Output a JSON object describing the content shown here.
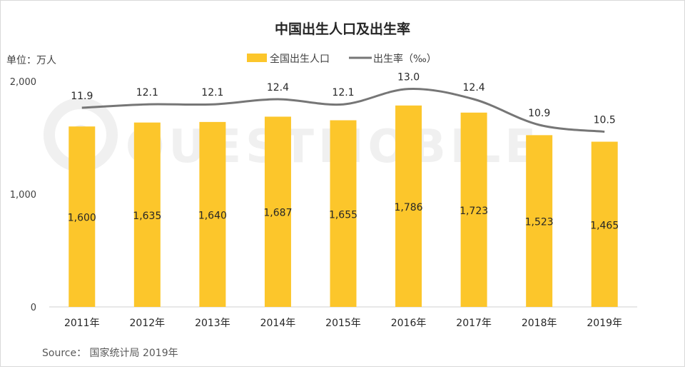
{
  "chart_data": {
    "type": "bar",
    "title": "中国出生人口及出生率",
    "unit_label": "单位：万人",
    "categories": [
      "2011年",
      "2012年",
      "2013年",
      "2014年",
      "2015年",
      "2016年",
      "2017年",
      "2018年",
      "2019年"
    ],
    "series": [
      {
        "name": "全国出生人口",
        "type": "bar",
        "color": "#FCC62B",
        "values": [
          1600,
          1635,
          1640,
          1687,
          1655,
          1786,
          1723,
          1523,
          1465
        ]
      },
      {
        "name": "出生率（‰）",
        "type": "line",
        "color": "#767676",
        "axis": "secondary",
        "values": [
          11.9,
          12.1,
          12.1,
          12.4,
          12.1,
          13.0,
          12.4,
          10.9,
          10.5
        ]
      }
    ],
    "ylim": [
      0,
      2000
    ],
    "yticks": [
      "0",
      "1,000",
      "2,000"
    ],
    "bar_labels": [
      "1,600",
      "1,635",
      "1,640",
      "1,687",
      "1,655",
      "1,786",
      "1,723",
      "1,523",
      "1,465"
    ],
    "rate_labels": [
      "11.9",
      "12.1",
      "12.1",
      "12.4",
      "12.1",
      "13.0",
      "12.4",
      "10.9",
      "10.5"
    ],
    "legend_position": "top",
    "grid": false
  },
  "watermark": "QUESTMOBILE",
  "source": "Source： 国家统计局 2019年"
}
